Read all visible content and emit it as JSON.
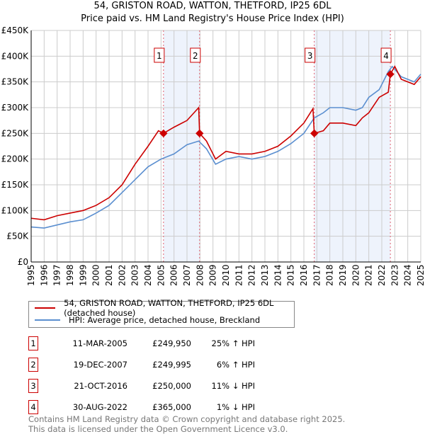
{
  "chart_data": {
    "type": "line",
    "title": "54, GRISTON ROAD, WATTON, THETFORD, IP25 6DL",
    "subtitle": "Price paid vs. HM Land Registry's House Price Index (HPI)",
    "xlim": [
      1995,
      2025
    ],
    "ylim": [
      0,
      450000
    ],
    "y_ticks": [
      0,
      50000,
      100000,
      150000,
      200000,
      250000,
      300000,
      350000,
      400000,
      450000
    ],
    "y_tick_labels": [
      "£0",
      "£50K",
      "£100K",
      "£150K",
      "£200K",
      "£250K",
      "£300K",
      "£350K",
      "£400K",
      "£450K"
    ],
    "x_ticks": [
      "1995",
      "1996",
      "1997",
      "1998",
      "1999",
      "2000",
      "2001",
      "2002",
      "2003",
      "2004",
      "2005",
      "2006",
      "2007",
      "2008",
      "2009",
      "2010",
      "2011",
      "2012",
      "2013",
      "2014",
      "2015",
      "2016",
      "2017",
      "2018",
      "2019",
      "2020",
      "2021",
      "2022",
      "2023",
      "2024",
      "2025"
    ],
    "grid": true,
    "legend_placement": "below",
    "series": [
      {
        "name": "54, GRISTON ROAD, WATTON, THETFORD, IP25 6DL (detached house)",
        "color": "#cc0000",
        "x": [
          1995,
          1996,
          1997,
          1998,
          1999,
          2000,
          2001,
          2002,
          2003,
          2004,
          2004.8,
          2005.19,
          2006,
          2007,
          2007.9,
          2007.97,
          2008.5,
          2009.2,
          2010,
          2011,
          2012,
          2013,
          2014,
          2015,
          2016,
          2016.7,
          2016.8,
          2017.5,
          2018,
          2019,
          2020,
          2020.5,
          2021,
          2021.8,
          2022.5,
          2022.66,
          2023,
          2023.5,
          2024.5,
          2025
        ],
        "y": [
          85000,
          82000,
          90000,
          95000,
          100000,
          110000,
          125000,
          150000,
          190000,
          225000,
          255000,
          249950,
          262000,
          275000,
          300000,
          249995,
          235000,
          200000,
          215000,
          210000,
          210000,
          215000,
          225000,
          245000,
          270000,
          298000,
          250000,
          255000,
          270000,
          270000,
          265000,
          280000,
          290000,
          320000,
          330000,
          365000,
          380000,
          355000,
          345000,
          360000
        ]
      },
      {
        "name": "HPI: Average price, detached house, Breckland",
        "color": "#5b8fd0",
        "x": [
          1995,
          1996,
          1997,
          1998,
          1999,
          2000,
          2001,
          2002,
          2003,
          2004,
          2005,
          2006,
          2007,
          2007.9,
          2008.5,
          2009.2,
          2010,
          2011,
          2012,
          2013,
          2014,
          2015,
          2016,
          2016.8,
          2017.5,
          2018,
          2019,
          2020,
          2020.5,
          2021,
          2021.8,
          2022.5,
          2022.8,
          2023.5,
          2024.5,
          2025
        ],
        "y": [
          68000,
          66000,
          72000,
          78000,
          82000,
          95000,
          110000,
          135000,
          160000,
          185000,
          200000,
          210000,
          228000,
          235000,
          220000,
          190000,
          200000,
          205000,
          200000,
          205000,
          215000,
          230000,
          250000,
          280000,
          290000,
          300000,
          300000,
          295000,
          300000,
          320000,
          335000,
          370000,
          380000,
          360000,
          350000,
          365000
        ]
      }
    ],
    "sales": [
      {
        "label": "1",
        "x": 2005.19,
        "y": 249950,
        "date": "11-MAR-2005",
        "price": "£249,950",
        "hpi": "25% ↑ HPI"
      },
      {
        "label": "2",
        "x": 2007.97,
        "y": 249995,
        "date": "19-DEC-2007",
        "price": "£249,995",
        "hpi": "6% ↑ HPI"
      },
      {
        "label": "3",
        "x": 2016.8,
        "y": 250000,
        "date": "21-OCT-2016",
        "price": "£250,000",
        "hpi": "11% ↓ HPI"
      },
      {
        "label": "4",
        "x": 2022.66,
        "y": 365000,
        "date": "30-AUG-2022",
        "price": "£365,000",
        "hpi": "1% ↓ HPI"
      }
    ]
  },
  "footer": {
    "line1": "Contains HM Land Registry data © Crown copyright and database right 2025.",
    "line2": "This data is licensed under the Open Government Licence v3.0."
  }
}
